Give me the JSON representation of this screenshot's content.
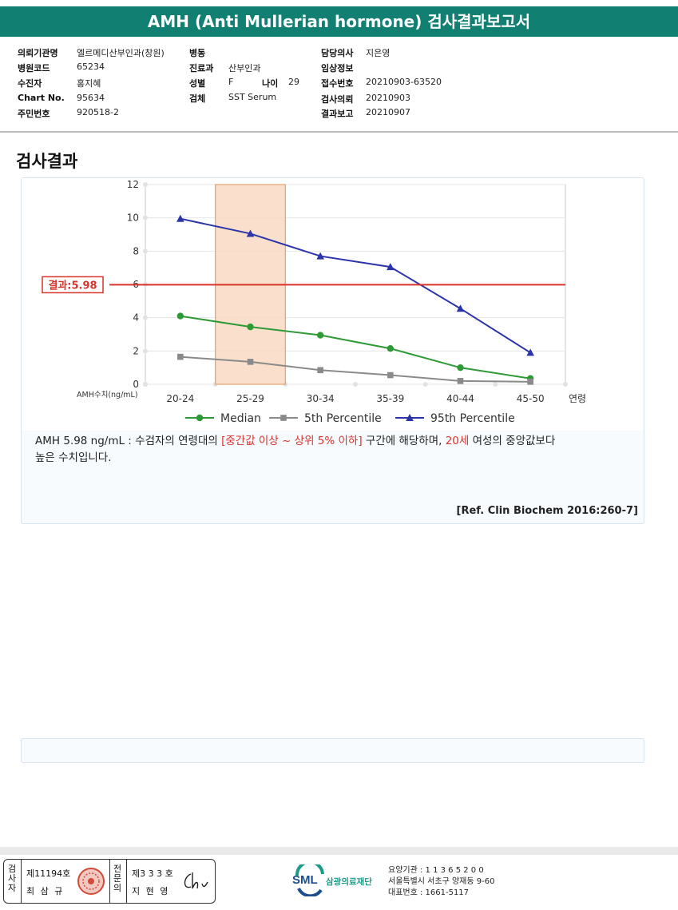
{
  "header": {
    "title": "AMH (Anti Mullerian hormone) 검사결과보고서"
  },
  "info": {
    "col1": [
      {
        "label": "의뢰기관명",
        "value": "엘르메디산부인과(창원)"
      },
      {
        "label": "병원코드",
        "value": "65234"
      },
      {
        "label": "수진자",
        "value": "홍지혜"
      },
      {
        "label": "Chart No.",
        "value": "95634"
      },
      {
        "label": "주민번호",
        "value": "920518-2"
      }
    ],
    "col2": [
      {
        "label": "병동",
        "value": ""
      },
      {
        "label": "진료과",
        "value": "산부인과"
      },
      {
        "label": "성별",
        "value": "F"
      },
      {
        "label": "검체",
        "value": "SST Serum"
      }
    ],
    "age": {
      "label": "나이",
      "value": "29"
    },
    "col3": [
      {
        "label": "담당의사",
        "value": "지은영"
      },
      {
        "label": "임상정보",
        "value": ""
      },
      {
        "label": "접수번호",
        "value": "20210903-63520"
      },
      {
        "label": "검사의뢰",
        "value": "20210903"
      },
      {
        "label": "결과보고",
        "value": "20210907"
      }
    ]
  },
  "section_title": "검사결과",
  "chart_data": {
    "type": "line",
    "categories": [
      "20-24",
      "25-29",
      "30-34",
      "35-39",
      "40-44",
      "45-50"
    ],
    "x_axis_suffix": "연령",
    "ylabel": "AMH수치(ng/mL)",
    "ylim": [
      0,
      12
    ],
    "yticks": [
      0,
      2,
      4,
      6,
      8,
      10,
      12
    ],
    "highlight_category": "25-29",
    "result_line": {
      "value": 5.98,
      "label": "결과:5.98",
      "color": "#d9322a"
    },
    "legend_position": "bottom",
    "series": [
      {
        "name": "Median",
        "marker": "circle",
        "color": "#2e9a35",
        "values": [
          4.1,
          3.45,
          2.95,
          2.15,
          1.0,
          0.35
        ]
      },
      {
        "name": "5th Percentile",
        "marker": "square",
        "color": "#8a8a8a",
        "values": [
          1.65,
          1.35,
          0.85,
          0.55,
          0.2,
          0.15
        ]
      },
      {
        "name": "95th Percentile",
        "marker": "triangle",
        "color": "#2b34a8",
        "values": [
          9.95,
          9.05,
          7.7,
          7.05,
          4.55,
          1.9
        ]
      }
    ]
  },
  "description": {
    "part1": "AMH  5.98 ng/mL : 수검자의 연령대의 ",
    "red1": "[중간값 이상 ~ 상위 5% 이하]",
    "part2": "  구간에 해당하며, ",
    "red2": "20세",
    "part3": " 여성의 중앙값보다",
    "line2": "높은 수치입니다."
  },
  "reference": "[Ref. Clin Biochem 2016:260-7]",
  "footer": {
    "inspector_label": "검사자",
    "inspector_no": "제11194호",
    "inspector_name": "최 삼 규",
    "specialist_label": "전문의",
    "specialist_no": "제3 3 3 호",
    "specialist_name": "지 현 영",
    "org_short": "SML",
    "org_name": "삼광의료재단",
    "agency": "요양기관 : 1 1 3 6 5 2 0 0",
    "address": "서울특별시 서초구 양재동 9-60",
    "phone": "대표번호 : 1661-5117"
  }
}
